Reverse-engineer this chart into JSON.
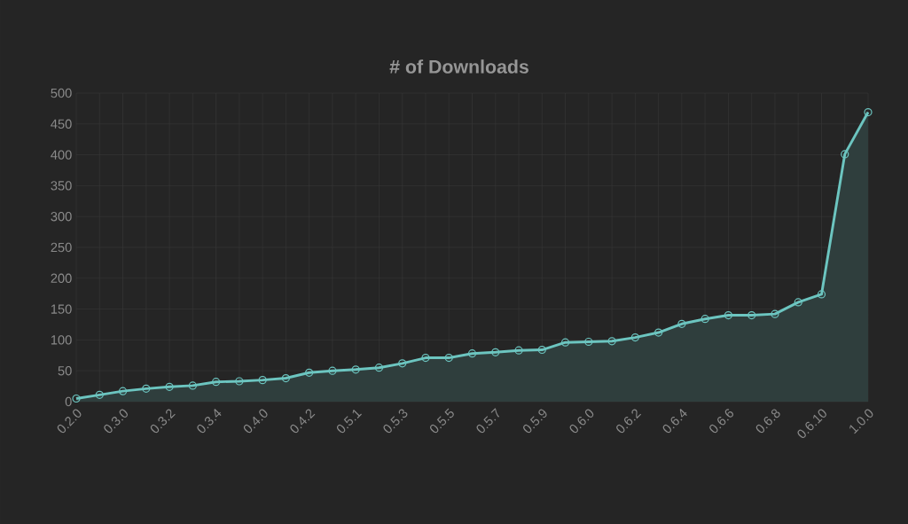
{
  "chart_data": {
    "type": "area",
    "title": "# of Downloads",
    "categories": [
      "0.2.0",
      null,
      "0.3.0",
      null,
      "0.3.2",
      null,
      "0.3.4",
      null,
      "0.4.0",
      null,
      "0.4.2",
      null,
      "0.5.1",
      null,
      "0.5.3",
      null,
      "0.5.5",
      null,
      "0.5.7",
      null,
      "0.5.9",
      null,
      "0.6.0",
      null,
      "0.6.2",
      null,
      "0.6.4",
      null,
      "0.6.6",
      null,
      "0.6.8",
      null,
      "0.6.10",
      null,
      "1.0.0"
    ],
    "values": [
      5,
      11,
      17,
      21,
      24,
      26,
      32,
      33,
      35,
      38,
      47,
      50,
      52,
      55,
      62,
      71,
      71,
      78,
      80,
      83,
      84,
      96,
      97,
      98,
      104,
      112,
      126,
      134,
      140,
      140,
      142,
      161,
      174,
      401,
      469
    ],
    "color": "#6cc5c0",
    "ylim": [
      0,
      500
    ],
    "yticks": [
      0,
      50,
      100,
      150,
      200,
      250,
      300,
      350,
      400,
      450,
      500
    ],
    "grid": true,
    "marker": "circle",
    "line_style": "solid"
  }
}
